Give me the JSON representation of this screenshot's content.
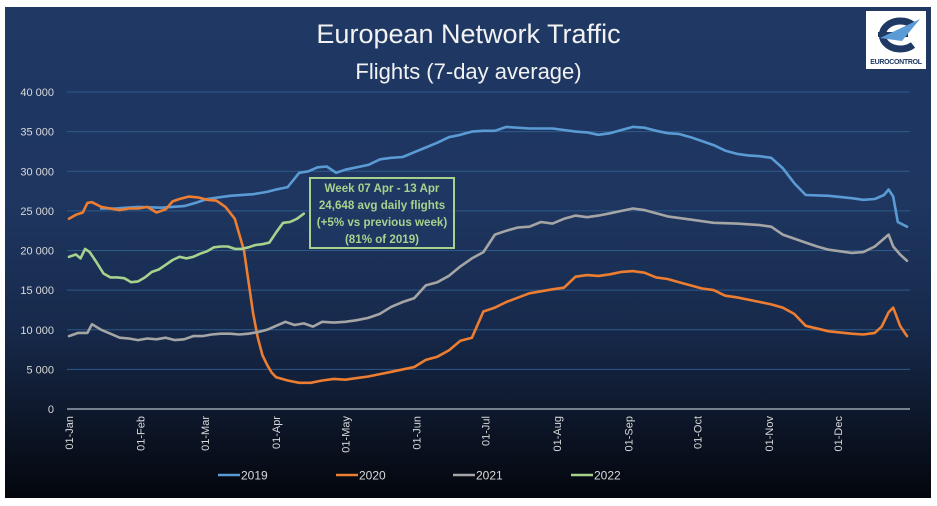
{
  "header": {
    "title": "European Network Traffic",
    "subtitle": "Flights (7-day average)",
    "logo_text": "EUROCONTROL"
  },
  "annotation": {
    "lines": [
      "Week 07 Apr - 13 Apr",
      "24,648 avg daily flights",
      "(+5% vs previous week)",
      "(81% of 2019)"
    ]
  },
  "chart_data": {
    "type": "line",
    "title": "European Network Traffic",
    "subtitle": "Flights (7-day average)",
    "xlabel": "",
    "ylabel": "",
    "ylim": [
      0,
      40000
    ],
    "yticks": [
      0,
      5000,
      10000,
      15000,
      20000,
      25000,
      30000,
      35000,
      40000
    ],
    "ytick_labels": [
      "0",
      "5 000",
      "10 000",
      "15 000",
      "20 000",
      "25 000",
      "30 000",
      "35 000",
      "40 000"
    ],
    "xlim": [
      0,
      364
    ],
    "xticks": [
      0,
      31,
      59,
      90,
      120,
      151,
      181,
      212,
      243,
      273,
      304,
      334
    ],
    "xtick_labels": [
      "01-Jan",
      "01-Feb",
      "01-Mar",
      "01-Apr",
      "01-May",
      "01-Jun",
      "01-Jul",
      "01-Aug",
      "01-Sep",
      "01-Oct",
      "01-Nov",
      "01-Dec"
    ],
    "x_unit": "day of year",
    "grid": true,
    "legend_position": "bottom",
    "series": [
      {
        "name": "2019",
        "color": "#5b9bd5",
        "x": [
          14,
          20,
          30,
          40,
          50,
          55,
          60,
          70,
          80,
          86,
          90,
          95,
          100,
          104,
          108,
          112,
          116,
          120,
          130,
          135,
          140,
          145,
          150,
          155,
          160,
          165,
          170,
          175,
          180,
          185,
          190,
          200,
          210,
          215,
          220,
          225,
          230,
          235,
          240,
          245,
          250,
          255,
          260,
          265,
          270,
          275,
          280,
          285,
          290,
          295,
          300,
          305,
          310,
          315,
          320,
          330,
          340,
          345,
          350,
          354,
          356,
          358,
          360,
          364
        ],
        "y": [
          25300,
          25300,
          25500,
          25400,
          25600,
          26000,
          26500,
          26900,
          27100,
          27400,
          27700,
          28000,
          29800,
          30000,
          30500,
          30600,
          29800,
          30200,
          30800,
          31500,
          31700,
          31800,
          32400,
          33000,
          33600,
          34300,
          34600,
          35000,
          35100,
          35100,
          35600,
          35400,
          35400,
          35200,
          35000,
          34900,
          34600,
          34800,
          35200,
          35600,
          35500,
          35100,
          34800,
          34700,
          34300,
          33800,
          33300,
          32600,
          32200,
          32000,
          31900,
          31700,
          30400,
          28500,
          27000,
          26900,
          26600,
          26400,
          26500,
          27000,
          27700,
          26800,
          23600,
          23000
        ]
      },
      {
        "name": "2020",
        "color": "#ed7d31",
        "x": [
          0,
          3,
          6,
          8,
          10,
          14,
          18,
          22,
          26,
          30,
          34,
          38,
          42,
          45,
          48,
          52,
          56,
          60,
          64,
          68,
          72,
          76,
          78,
          80,
          82,
          84,
          86,
          88,
          90,
          95,
          100,
          105,
          110,
          115,
          120,
          125,
          130,
          140,
          150,
          155,
          160,
          165,
          170,
          175,
          180,
          185,
          190,
          200,
          210,
          215,
          220,
          225,
          230,
          235,
          240,
          245,
          250,
          255,
          260,
          265,
          270,
          275,
          280,
          285,
          290,
          295,
          300,
          305,
          310,
          315,
          320,
          330,
          340,
          345,
          350,
          353,
          356,
          358,
          361,
          364
        ],
        "y": [
          24000,
          24500,
          24800,
          26000,
          26100,
          25500,
          25300,
          25100,
          25300,
          25300,
          25500,
          24800,
          25200,
          26200,
          26500,
          26800,
          26700,
          26400,
          26300,
          25500,
          24000,
          20000,
          16000,
          12000,
          9000,
          6800,
          5600,
          4600,
          4000,
          3600,
          3300,
          3300,
          3600,
          3800,
          3700,
          3900,
          4100,
          4700,
          5300,
          6200,
          6600,
          7400,
          8600,
          9000,
          12300,
          12800,
          13500,
          14600,
          15100,
          15300,
          16700,
          16900,
          16800,
          17000,
          17300,
          17400,
          17200,
          16600,
          16400,
          16000,
          15600,
          15200,
          15000,
          14300,
          14100,
          13800,
          13500,
          13200,
          12800,
          12000,
          10500,
          9800,
          9500,
          9400,
          9600,
          10400,
          12200,
          12800,
          10500,
          9200
        ]
      },
      {
        "name": "2021",
        "color": "#a5a5a5",
        "x": [
          0,
          4,
          8,
          10,
          14,
          18,
          22,
          26,
          30,
          34,
          38,
          42,
          46,
          50,
          54,
          58,
          62,
          66,
          70,
          74,
          78,
          82,
          86,
          90,
          94,
          98,
          102,
          106,
          110,
          115,
          120,
          125,
          130,
          135,
          140,
          145,
          150,
          155,
          160,
          165,
          170,
          175,
          180,
          185,
          190,
          195,
          200,
          205,
          210,
          215,
          220,
          225,
          230,
          235,
          240,
          245,
          250,
          255,
          260,
          270,
          280,
          290,
          300,
          305,
          310,
          315,
          320,
          325,
          330,
          335,
          340,
          345,
          350,
          354,
          356,
          358,
          361,
          364
        ],
        "y": [
          9200,
          9600,
          9600,
          10700,
          10000,
          9500,
          9000,
          8900,
          8700,
          8900,
          8800,
          9000,
          8700,
          8800,
          9200,
          9200,
          9400,
          9500,
          9500,
          9400,
          9500,
          9700,
          10000,
          10500,
          11000,
          10600,
          10800,
          10400,
          11000,
          10900,
          11000,
          11200,
          11500,
          12000,
          12900,
          13500,
          14000,
          15600,
          16000,
          16800,
          18000,
          19000,
          19800,
          22000,
          22500,
          22900,
          23000,
          23600,
          23400,
          24000,
          24400,
          24200,
          24400,
          24700,
          25000,
          25300,
          25100,
          24700,
          24300,
          23900,
          23500,
          23400,
          23200,
          23000,
          22000,
          21500,
          21000,
          20500,
          20100,
          19900,
          19700,
          19800,
          20500,
          21500,
          22000,
          20500,
          19500,
          18700
        ]
      },
      {
        "name": "2022",
        "color": "#a9d18e",
        "x": [
          0,
          3,
          5,
          7,
          9,
          12,
          15,
          18,
          21,
          24,
          27,
          30,
          33,
          36,
          39,
          42,
          45,
          48,
          51,
          54,
          57,
          60,
          63,
          66,
          69,
          72,
          75,
          78,
          81,
          84,
          87,
          90,
          93,
          96,
          99,
          102
        ],
        "y": [
          19200,
          19500,
          19000,
          20200,
          19800,
          18500,
          17100,
          16600,
          16600,
          16500,
          16000,
          16100,
          16600,
          17300,
          17600,
          18200,
          18800,
          19200,
          19000,
          19200,
          19600,
          19900,
          20400,
          20500,
          20500,
          20200,
          20200,
          20400,
          20700,
          20800,
          21000,
          22300,
          23500,
          23600,
          24000,
          24648
        ]
      }
    ]
  }
}
